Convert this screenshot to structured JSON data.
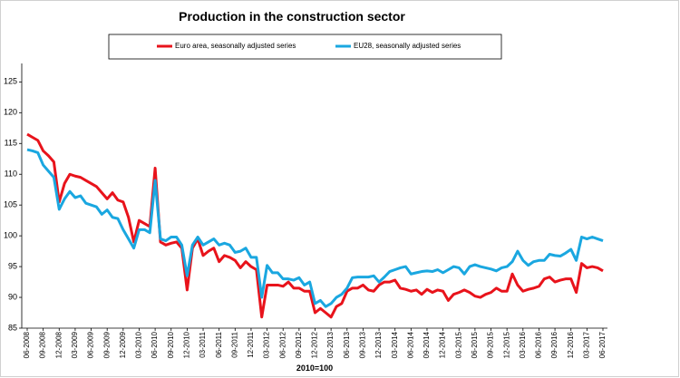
{
  "chart_data": {
    "type": "line",
    "title": "Production in the construction sector",
    "x_label": "2010=100",
    "legend": "top",
    "grid": false,
    "ylim": [
      85,
      128
    ],
    "yticks": [
      85,
      90,
      95,
      100,
      105,
      110,
      115,
      120,
      125
    ],
    "categories": [
      "06-2008",
      null,
      null,
      "09-2008",
      null,
      null,
      "12-2008",
      null,
      null,
      "03-2009",
      null,
      null,
      "06-2009",
      null,
      null,
      "09-2009",
      null,
      null,
      "12-2009",
      null,
      null,
      "03-2010",
      null,
      null,
      "06-2010",
      null,
      null,
      "09-2010",
      null,
      null,
      "12-2010",
      null,
      null,
      "03-2011",
      null,
      null,
      "06-2011",
      null,
      null,
      "09-2011",
      null,
      null,
      "12-2011",
      null,
      null,
      "03-2012",
      null,
      null,
      "06-2012",
      null,
      null,
      "09-2012",
      null,
      null,
      "12-2012",
      null,
      null,
      "03-2013",
      null,
      null,
      "06-2013",
      null,
      null,
      "09-2013",
      null,
      null,
      "12-2013",
      null,
      null,
      "03-2014",
      null,
      null,
      "06-2014",
      null,
      null,
      "09-2014",
      null,
      null,
      "12-2014",
      null,
      null,
      "03-2015",
      null,
      null,
      "06-2015",
      null,
      null,
      "09-2015",
      null,
      null,
      "12-2015",
      null,
      null,
      "03-2016",
      null,
      null,
      "06-2016",
      null,
      null,
      "09-2016",
      null,
      null,
      "12-2016",
      null,
      null,
      "03-2017",
      null,
      null,
      "06-2017"
    ],
    "series": [
      {
        "name": "Euro area, seasonally adjusted series",
        "color": "#e8131b",
        "values": [
          116.5,
          116,
          115.5,
          113.8,
          113,
          112,
          105.5,
          108.5,
          110,
          109.7,
          109.5,
          109,
          108.5,
          108,
          107,
          106,
          107,
          105.8,
          105.5,
          103,
          99,
          102.5,
          102,
          101.5,
          111,
          99,
          98.5,
          98.8,
          99,
          98,
          91.2,
          98,
          99.5,
          96.8,
          97.5,
          98,
          95.8,
          96.8,
          96.5,
          96,
          94.8,
          95.8,
          95,
          94.5,
          86.8,
          92,
          92,
          92,
          91.8,
          92.5,
          91.5,
          91.5,
          91,
          91,
          87.5,
          88.2,
          87.5,
          86.8,
          88.5,
          89,
          91,
          91.5,
          91.5,
          92,
          91.2,
          91,
          92,
          92.5,
          92.5,
          92.8,
          91.5,
          91.3,
          91,
          91.2,
          90.5,
          91.3,
          90.8,
          91.2,
          91,
          89.5,
          90.5,
          90.8,
          91.2,
          90.8,
          90.2,
          90,
          90.5,
          90.8,
          91.5,
          91,
          91,
          93.8,
          92,
          91,
          91.3,
          91.5,
          91.8,
          93,
          93.3,
          92.5,
          92.8,
          93,
          93,
          90.8,
          95.5,
          94.8,
          95,
          94.8,
          94.3
        ]
      },
      {
        "name": "EU28, seasonally adjusted series",
        "color": "#1aa7e0",
        "values": [
          114,
          113.8,
          113.5,
          111.5,
          110.5,
          109.5,
          104.3,
          106,
          107.2,
          106.2,
          106.5,
          105.3,
          105,
          104.7,
          103.5,
          104.2,
          103,
          102.8,
          101,
          99.5,
          98,
          101,
          101,
          100.5,
          109,
          99.5,
          99.2,
          99.8,
          99.8,
          98.5,
          93.5,
          98.5,
          99.8,
          98.5,
          99,
          99.5,
          98.5,
          98.8,
          98.5,
          97.3,
          97.5,
          98,
          96.5,
          96.5,
          90,
          95.2,
          94,
          94,
          93,
          93,
          92.8,
          93.2,
          92,
          92.5,
          89,
          89.5,
          88.5,
          89,
          90,
          90.5,
          91.5,
          93.2,
          93.3,
          93.3,
          93.3,
          93.5,
          92.5,
          93.3,
          94.2,
          94.5,
          94.8,
          95,
          93.8,
          94,
          94.2,
          94.3,
          94.2,
          94.5,
          94,
          94.5,
          95,
          94.8,
          93.8,
          95,
          95.3,
          95,
          94.8,
          94.6,
          94.3,
          94.8,
          95,
          95.8,
          97.5,
          96,
          95.2,
          95.8,
          96,
          96,
          97,
          96.8,
          96.7,
          97.2,
          97.8,
          96,
          99.8,
          99.5,
          99.8,
          99.5,
          99.2
        ]
      }
    ]
  }
}
